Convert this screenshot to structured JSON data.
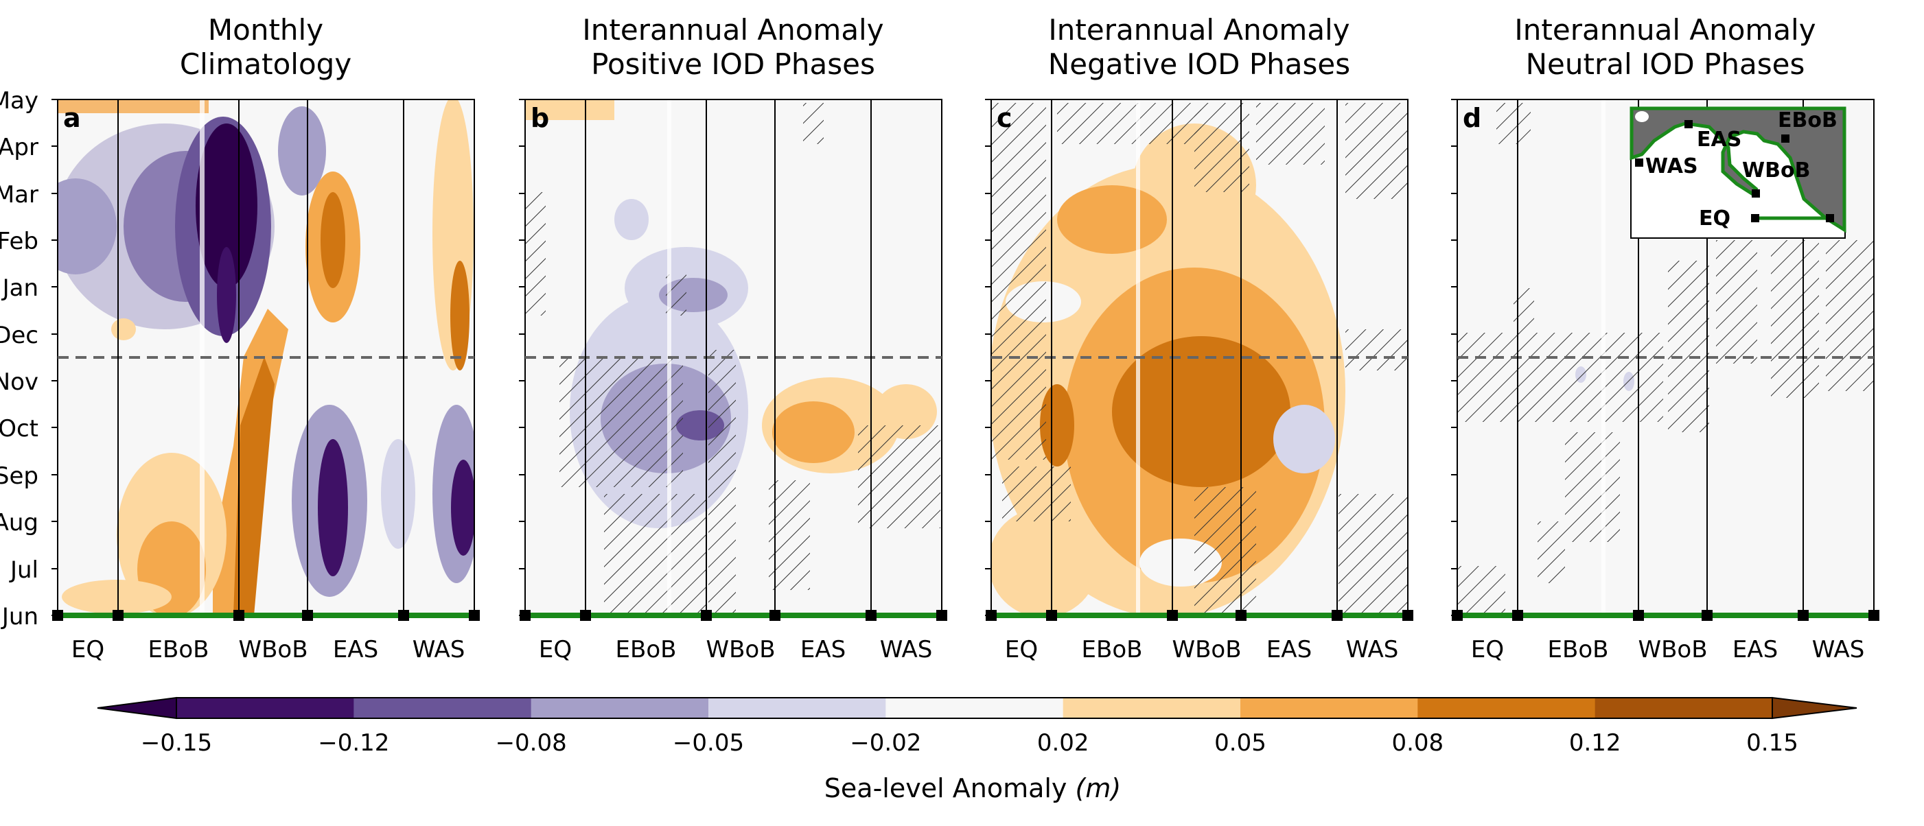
{
  "figure": {
    "colorbar_label": "Sea-level Anomaly",
    "colorbar_label_unit": "(m)"
  },
  "chart_data": {
    "type": "heatmap",
    "y_ticks": [
      "Jun",
      "Jul",
      "Aug",
      "Sep",
      "Oct",
      "Nov",
      "Dec",
      "Jan",
      "Feb",
      "Mar",
      "Apr",
      "May"
    ],
    "x_ticks": [
      "EQ",
      "EBoB",
      "WBoB",
      "EAS",
      "WAS"
    ],
    "colorbar": {
      "ticks": [
        "−0.15",
        "−0.12",
        "−0.08",
        "−0.05",
        "−0.02",
        "0.02",
        "0.05",
        "0.08",
        "0.12",
        "0.15"
      ],
      "levels": [
        -0.15,
        -0.12,
        -0.08,
        -0.05,
        -0.02,
        0.02,
        0.05,
        0.08,
        0.12,
        0.15
      ],
      "colors": [
        "#2d004b",
        "#3f1166",
        "#6a5598",
        "#a59fc8",
        "#d6d6ea",
        "#f7f7f7",
        "#fdd8a0",
        "#f4a94d",
        "#d07612",
        "#a5530a",
        "#7f3b08"
      ],
      "extend": "both"
    },
    "panels": [
      {
        "letter": "a",
        "title": [
          "Monthly",
          "Climatology"
        ]
      },
      {
        "letter": "b",
        "title": [
          "Interannual Anomaly",
          "Positive IOD Phases"
        ]
      },
      {
        "letter": "c",
        "title": [
          "Interannual Anomaly",
          "Negative IOD Phases"
        ]
      },
      {
        "letter": "d",
        "title": [
          "Interannual Anomaly",
          "Neutral IOD Phases"
        ]
      }
    ],
    "inset_map_labels": [
      "EBoB",
      "EAS",
      "WBoB",
      "WAS",
      "EQ"
    ]
  }
}
